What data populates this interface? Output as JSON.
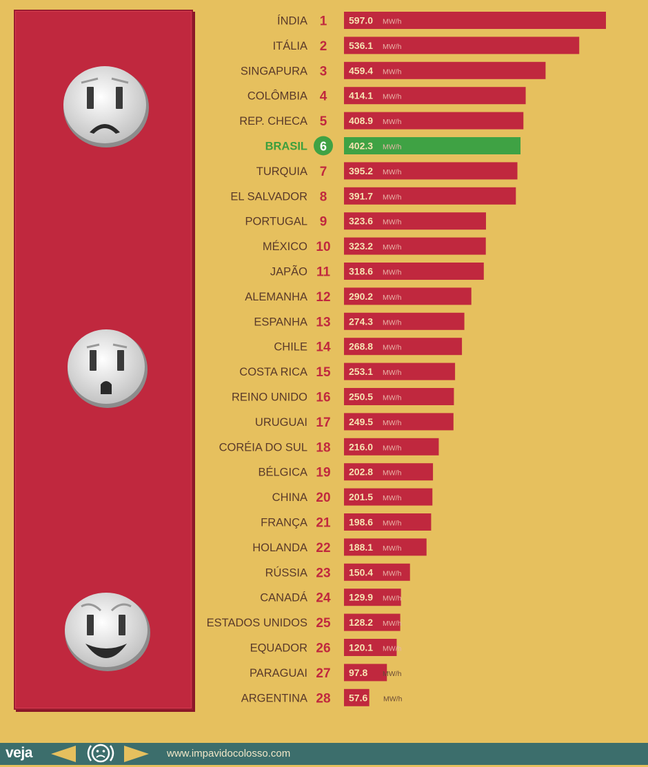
{
  "chart_data": {
    "type": "bar",
    "orientation": "horizontal",
    "unit": "MW/h",
    "highlight": "BRASIL",
    "colors": {
      "bar": "#c0283e",
      "highlight": "#3fa244",
      "background": "#e6c05e"
    },
    "series": [
      {
        "rank": "1",
        "country": "ÍNDIA",
        "value": 597.0,
        "label": "597.0"
      },
      {
        "rank": "2",
        "country": "ITÁLIA",
        "value": 536.1,
        "label": "536.1"
      },
      {
        "rank": "3",
        "country": "SINGAPURA",
        "value": 459.4,
        "label": "459.4"
      },
      {
        "rank": "4",
        "country": "COLÔMBIA",
        "value": 414.1,
        "label": "414.1"
      },
      {
        "rank": "5",
        "country": "REP. CHECA",
        "value": 408.9,
        "label": "408.9"
      },
      {
        "rank": "6",
        "country": "BRASIL",
        "value": 402.3,
        "label": "402.3"
      },
      {
        "rank": "7",
        "country": "TURQUIA",
        "value": 395.2,
        "label": "395.2"
      },
      {
        "rank": "8",
        "country": "EL SALVADOR",
        "value": 391.7,
        "label": "391.7"
      },
      {
        "rank": "9",
        "country": "PORTUGAL",
        "value": 323.6,
        "label": "323.6"
      },
      {
        "rank": "10",
        "country": "MÉXICO",
        "value": 323.2,
        "label": "323.2"
      },
      {
        "rank": "11",
        "country": "JAPÃO",
        "value": 318.6,
        "label": "318.6"
      },
      {
        "rank": "12",
        "country": "ALEMANHA",
        "value": 290.2,
        "label": "290.2"
      },
      {
        "rank": "13",
        "country": "ESPANHA",
        "value": 274.3,
        "label": "274.3"
      },
      {
        "rank": "14",
        "country": "CHILE",
        "value": 268.8,
        "label": "268.8"
      },
      {
        "rank": "15",
        "country": "COSTA RICA",
        "value": 253.1,
        "label": "253.1"
      },
      {
        "rank": "16",
        "country": "REINO UNIDO",
        "value": 250.5,
        "label": "250.5"
      },
      {
        "rank": "17",
        "country": "URUGUAI",
        "value": 249.5,
        "label": "249.5"
      },
      {
        "rank": "18",
        "country": "CORÉIA DO SUL",
        "value": 216.0,
        "label": "216.0"
      },
      {
        "rank": "19",
        "country": "BÉLGICA",
        "value": 202.8,
        "label": "202.8"
      },
      {
        "rank": "20",
        "country": "CHINA",
        "value": 201.5,
        "label": "201.5"
      },
      {
        "rank": "21",
        "country": "FRANÇA",
        "value": 198.6,
        "label": "198.6"
      },
      {
        "rank": "22",
        "country": "HOLANDA",
        "value": 188.1,
        "label": "188.1"
      },
      {
        "rank": "23",
        "country": "RÚSSIA",
        "value": 150.4,
        "label": "150.4"
      },
      {
        "rank": "24",
        "country": "CANADÁ",
        "value": 129.9,
        "label": "129.9"
      },
      {
        "rank": "25",
        "country": "ESTADOS UNIDOS",
        "value": 128.2,
        "label": "128.2"
      },
      {
        "rank": "26",
        "country": "EQUADOR",
        "value": 120.1,
        "label": "120.1"
      },
      {
        "rank": "27",
        "country": "PARAGUAI",
        "value": 97.8,
        "label": "97.8"
      },
      {
        "rank": "28",
        "country": "ARGENTINA",
        "value": 57.6,
        "label": "57.6"
      }
    ]
  },
  "illustration": {
    "icons": [
      "sad-outlet-icon",
      "surprised-outlet-icon",
      "happy-outlet-icon"
    ]
  },
  "footer": {
    "brand": "veja",
    "url": "www.impavidocolosso.com",
    "icons": [
      "prev-arrow-icon",
      "sad-face-icon",
      "next-arrow-icon"
    ]
  }
}
